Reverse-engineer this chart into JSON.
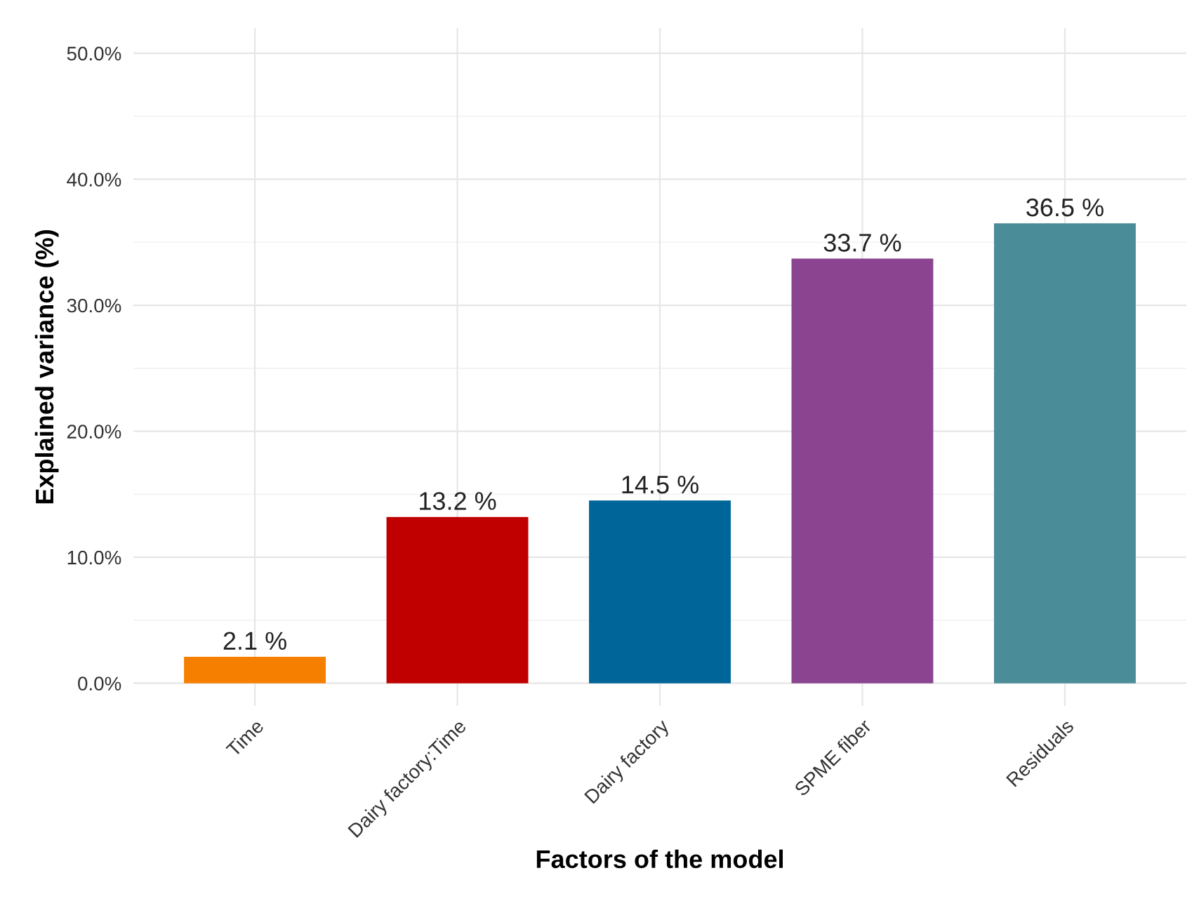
{
  "chart_data": {
    "type": "bar",
    "xlabel": "Factors of the model",
    "ylabel": "Explained variance (%)",
    "categories": [
      "Time",
      "Dairy factory:Time",
      "Dairy factory",
      "SPME fiber",
      "Residuals"
    ],
    "values": [
      2.1,
      13.2,
      14.5,
      33.7,
      36.5
    ],
    "colors": [
      "#f77f00",
      "#c00000",
      "#006699",
      "#8b4590",
      "#4b8c99"
    ],
    "value_labels": [
      "2.1 %",
      "13.2 %",
      "14.5 %",
      "33.7 %",
      "36.5 %"
    ],
    "ylim": [
      -1.8,
      52
    ],
    "yticks": [
      {
        "value": 0,
        "label": "0.0%"
      },
      {
        "value": 10,
        "label": "10.0%"
      },
      {
        "value": 20,
        "label": "20.0%"
      },
      {
        "value": 30,
        "label": "30.0%"
      },
      {
        "value": 40,
        "label": "40.0%"
      },
      {
        "value": 50,
        "label": "50.0%"
      }
    ],
    "grid": true,
    "legend": false
  }
}
